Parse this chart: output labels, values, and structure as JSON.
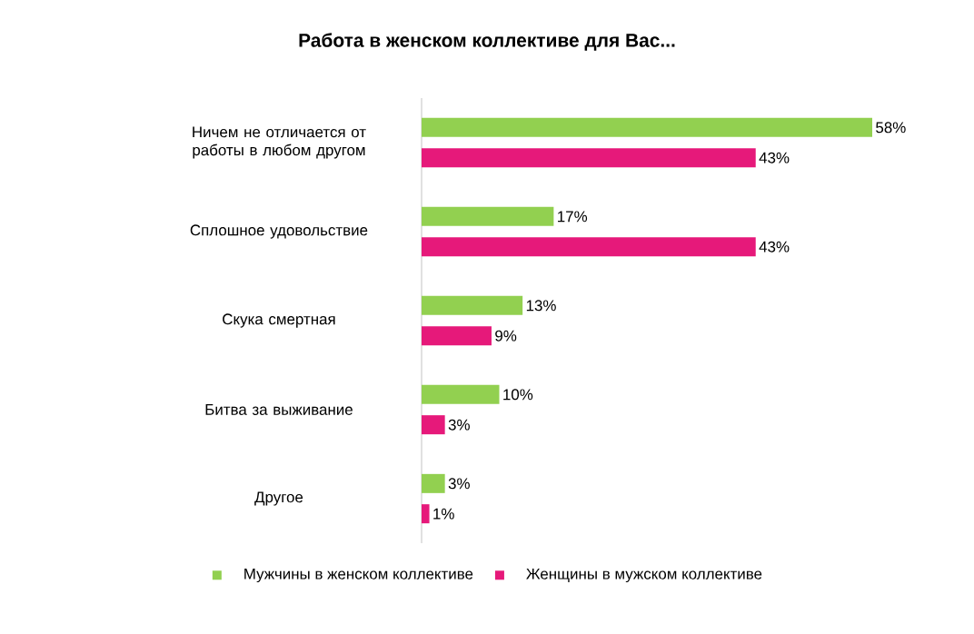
{
  "chart_data": {
    "type": "bar",
    "orientation": "horizontal",
    "title": "Работа в женском коллективе для Вас...",
    "categories": [
      "Ничем не отличается  от работы  в любом другом",
      "Сплошное  удовольствие",
      "Скука смертная",
      "Битва  за выживание",
      "Другое"
    ],
    "series": [
      {
        "name": "Мужчины в женском коллективе",
        "color": "#92d050",
        "values": [
          58,
          17,
          13,
          10,
          3
        ],
        "value_labels": [
          "58%",
          "17%",
          "13%",
          "10%",
          "3%"
        ]
      },
      {
        "name": "Женщины  в мужском коллективе",
        "color": "#e6197a",
        "values": [
          43,
          43,
          9,
          3,
          1
        ],
        "value_labels": [
          "43%",
          "43%",
          "9%",
          "3%",
          "1%"
        ]
      }
    ],
    "legend": "bottom"
  }
}
